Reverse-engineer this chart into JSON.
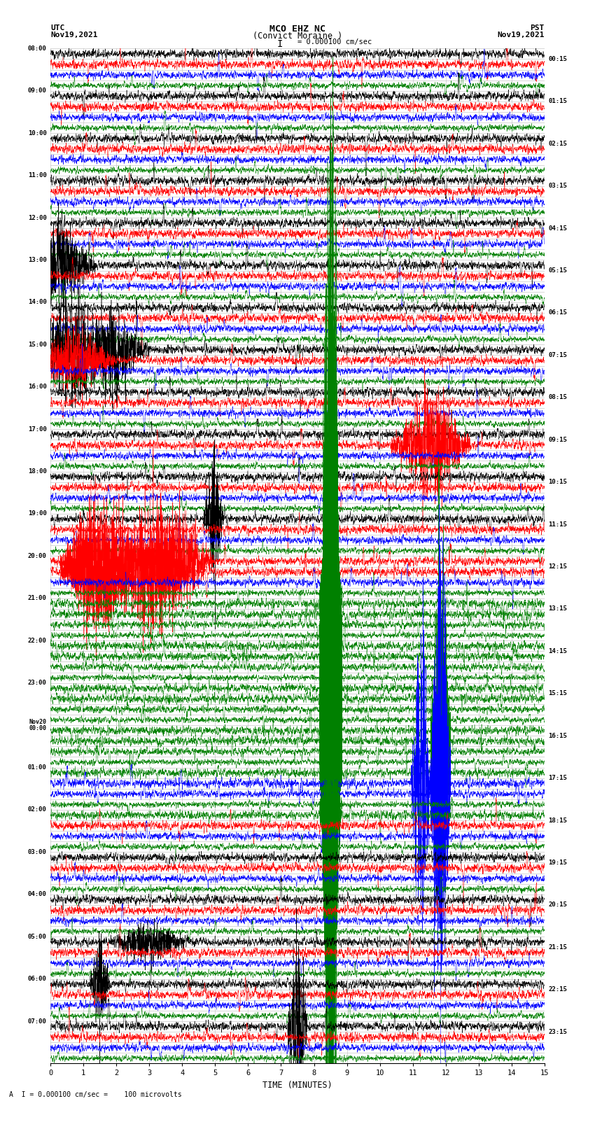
{
  "title_line1": "MCO EHZ NC",
  "title_line2": "(Convict Moraine )",
  "title_scale": "I = 0.000100 cm/sec",
  "label_left_top": "UTC",
  "label_left_date": "Nov19,2021",
  "label_right_top": "PST",
  "label_right_date": "Nov19,2021",
  "xlabel": "TIME (MINUTES)",
  "scale_label": "A  I = 0.000100 cm/sec =    100 microvolts",
  "minutes_per_row": 15,
  "colors_cycle": [
    "black",
    "red",
    "blue",
    "green"
  ],
  "background_color": "white",
  "grid_color": "#bbbbbb",
  "figsize": [
    8.5,
    16.13
  ],
  "dpi": 100,
  "left_times_utc": [
    "08:00",
    "09:00",
    "10:00",
    "11:00",
    "12:00",
    "13:00",
    "14:00",
    "15:00",
    "16:00",
    "17:00",
    "18:00",
    "19:00",
    "20:00",
    "21:00",
    "22:00",
    "23:00",
    "Nov20\n00:00",
    "01:00",
    "02:00",
    "03:00",
    "04:00",
    "05:00",
    "06:00",
    "07:00"
  ],
  "right_times_pst": [
    "00:15",
    "01:15",
    "02:15",
    "03:15",
    "04:15",
    "05:15",
    "06:15",
    "07:15",
    "08:15",
    "09:15",
    "10:15",
    "11:15",
    "12:15",
    "13:15",
    "14:15",
    "15:15",
    "16:15",
    "17:15",
    "18:15",
    "19:15",
    "20:15",
    "21:15",
    "22:15",
    "23:15"
  ],
  "left_tick_rows": [
    0,
    4,
    8,
    12,
    16,
    20,
    24,
    28,
    32,
    36,
    40,
    44,
    48,
    52,
    56,
    60,
    64,
    68,
    72,
    76,
    80,
    84,
    88,
    92
  ],
  "right_tick_rows": [
    1,
    5,
    9,
    13,
    17,
    21,
    25,
    29,
    33,
    37,
    41,
    45,
    49,
    53,
    57,
    61,
    65,
    69,
    73,
    77,
    81,
    85,
    89,
    93
  ],
  "noise_base_amp": 0.32,
  "total_rows": 96
}
